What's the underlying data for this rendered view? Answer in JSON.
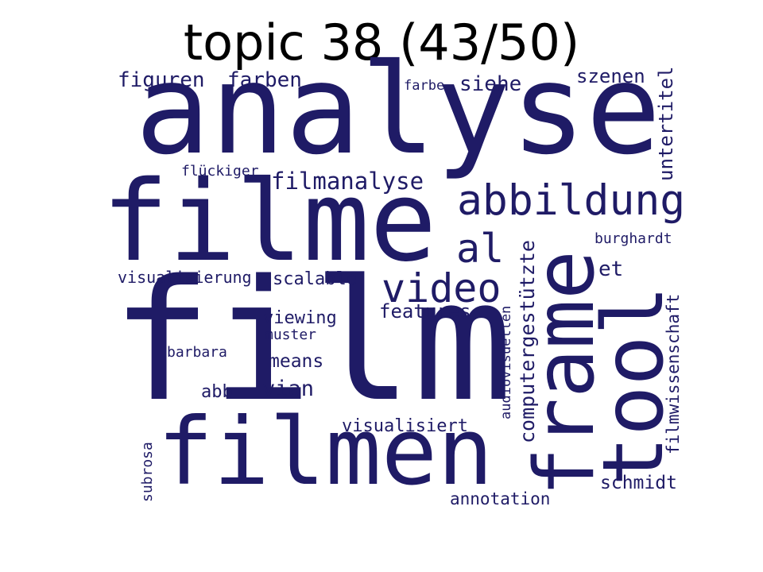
{
  "title": "topic 38 (43/50)",
  "colors": {
    "word_color": "#1f1b66",
    "title_color": "#000000",
    "background": "#ffffff"
  },
  "words": [
    {
      "text": "film",
      "weight": 1.0
    },
    {
      "text": "analyse",
      "weight": 0.82
    },
    {
      "text": "filme",
      "weight": 0.72
    },
    {
      "text": "filmen",
      "weight": 0.6
    },
    {
      "text": "tool",
      "weight": 0.55
    },
    {
      "text": "frame",
      "weight": 0.55
    },
    {
      "text": "abbildung",
      "weight": 0.3
    },
    {
      "text": "video",
      "weight": 0.28
    },
    {
      "text": "al",
      "weight": 0.27
    },
    {
      "text": "computergestützte",
      "weight": 0.18
    },
    {
      "text": "filmanalyse",
      "weight": 0.17
    },
    {
      "text": "untertitel",
      "weight": 0.15
    },
    {
      "text": "figuren",
      "weight": 0.15
    },
    {
      "text": "farben",
      "weight": 0.15
    },
    {
      "text": "siehe",
      "weight": 0.15
    },
    {
      "text": "szenen",
      "weight": 0.14
    },
    {
      "text": "vian",
      "weight": 0.15
    },
    {
      "text": "features",
      "weight": 0.15
    },
    {
      "text": "et",
      "weight": 0.15
    },
    {
      "text": "filmwissenschaft",
      "weight": 0.13
    },
    {
      "text": "schmidt",
      "weight": 0.14
    },
    {
      "text": "annotation",
      "weight": 0.13
    },
    {
      "text": "visualisiert",
      "weight": 0.13
    },
    {
      "text": "means",
      "weight": 0.13
    },
    {
      "text": "viewing",
      "weight": 0.13
    },
    {
      "text": "scalable",
      "weight": 0.13
    },
    {
      "text": "visualisierung",
      "weight": 0.12
    },
    {
      "text": "abb",
      "weight": 0.13
    },
    {
      "text": "audiovisuellen",
      "weight": 0.11
    },
    {
      "text": "burghardt",
      "weight": 0.11
    },
    {
      "text": "flückiger",
      "weight": 0.11
    },
    {
      "text": "farbe",
      "weight": 0.1
    },
    {
      "text": "muster",
      "weight": 0.11
    },
    {
      "text": "barbara",
      "weight": 0.11
    },
    {
      "text": "subrosa",
      "weight": 0.11
    }
  ]
}
